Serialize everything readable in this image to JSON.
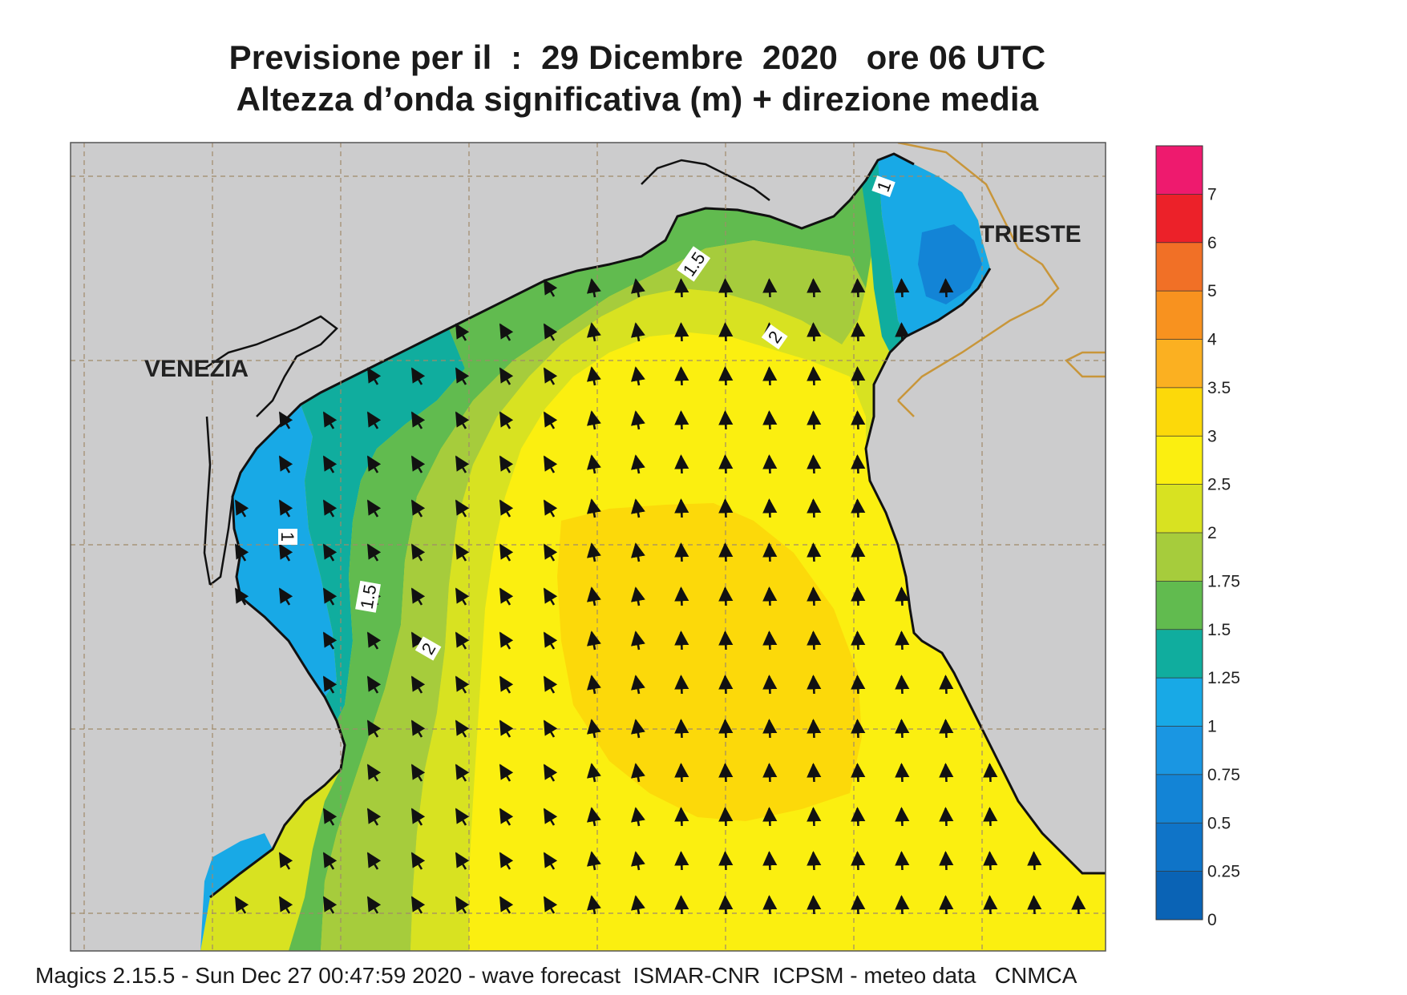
{
  "header": {
    "line1": "Previsione per il  :  29 Dicembre  2020   ore 06 UTC",
    "line2": "Altezza d’onda significativa (m) + direzione media"
  },
  "places": {
    "venezia": "VENEZIA",
    "trieste": "TRIESTE"
  },
  "contour_labels": [
    "1.5",
    "2",
    "1",
    "1.5",
    "2",
    "1"
  ],
  "legend": {
    "ticks": [
      "0",
      "0.25",
      "0.5",
      "0.75",
      "1",
      "1.25",
      "1.5",
      "1.75",
      "2",
      "2.5",
      "3",
      "3.5",
      "4",
      "5",
      "6",
      "7"
    ],
    "colors": [
      "#0a63b5",
      "#0f74c8",
      "#1384d6",
      "#1a96e2",
      "#18a9e6",
      "#10ad9e",
      "#61bb4f",
      "#a6cc3c",
      "#d8e221",
      "#fbef10",
      "#fcd90a",
      "#fbb021",
      "#f8921f",
      "#f17026",
      "#ec2129",
      "#ee1a6e"
    ]
  },
  "map_colors": {
    "land": "#cccccd",
    "frame_bg": "#cccccd",
    "grid": "#a08a6a",
    "border": "#c8963a"
  },
  "footer": {
    "text": "Magics 2.15.5 - Sun Dec 27 00:47:59 2020 - wave forecast  ISMAR-CNR  ICPSM - meteo data   CNMCA"
  }
}
